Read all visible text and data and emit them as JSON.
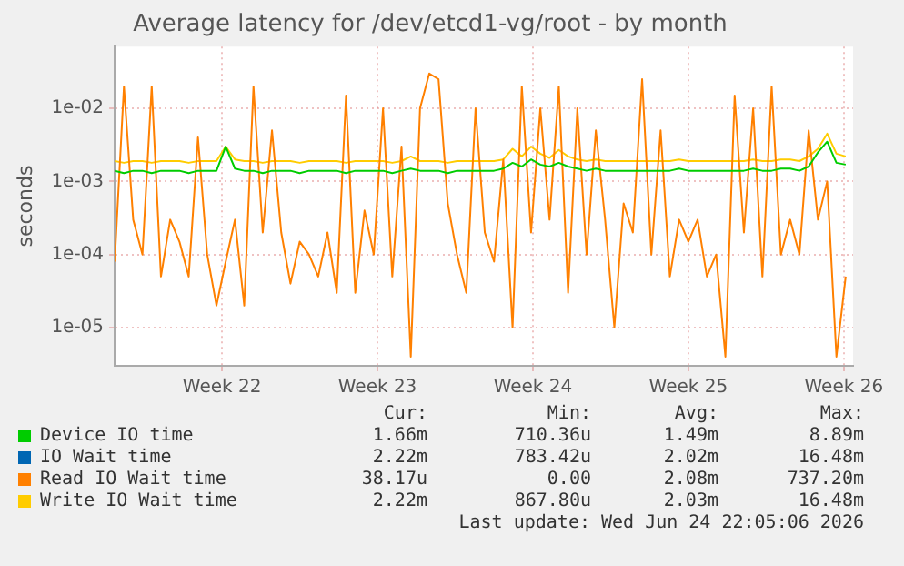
{
  "chart_data": {
    "type": "line",
    "title": "Average latency for /dev/etcd1-vg/root - by month",
    "ylabel": "seconds",
    "log": "y",
    "grid": true,
    "legend": "bottom",
    "xlim": [
      "2026-05-22T16:00",
      "2026-06-24T22:00"
    ],
    "xticks": [
      {
        "value": "2026-05-27T12:00",
        "label": "Week 22"
      },
      {
        "value": "2026-06-03T12:00",
        "label": "Week 23"
      },
      {
        "value": "2026-06-10T12:00",
        "label": "Week 24"
      },
      {
        "value": "2026-06-17T12:00",
        "label": "Week 25"
      },
      {
        "value": "2026-06-24T12:00",
        "label": "Week 26"
      }
    ],
    "ylim": [
      3e-06,
      0.07
    ],
    "yticks": [
      {
        "value": 1e-05,
        "label": "1e-05"
      },
      {
        "value": 0.0001,
        "label": "1e-04"
      },
      {
        "value": 0.001,
        "label": "1e-03"
      },
      {
        "value": 0.01,
        "label": "1e-02"
      }
    ],
    "x": [
      "2026-05-22T16:00",
      "2026-05-23T02:00",
      "2026-05-23T12:00",
      "2026-05-23T22:00",
      "2026-05-24T08:00",
      "2026-05-24T18:00",
      "2026-05-25T04:00",
      "2026-05-25T14:00",
      "2026-05-26T00:00",
      "2026-05-26T10:00",
      "2026-05-26T20:00",
      "2026-05-27T06:00",
      "2026-05-27T16:00",
      "2026-05-28T02:00",
      "2026-05-28T12:00",
      "2026-05-28T22:00",
      "2026-05-29T08:00",
      "2026-05-29T18:00",
      "2026-05-30T04:00",
      "2026-05-30T14:00",
      "2026-05-31T00:00",
      "2026-05-31T10:00",
      "2026-05-31T20:00",
      "2026-06-01T06:00",
      "2026-06-01T16:00",
      "2026-06-02T02:00",
      "2026-06-02T12:00",
      "2026-06-02T22:00",
      "2026-06-03T08:00",
      "2026-06-03T18:00",
      "2026-06-04T04:00",
      "2026-06-04T14:00",
      "2026-06-05T00:00",
      "2026-06-05T10:00",
      "2026-06-05T20:00",
      "2026-06-06T06:00",
      "2026-06-06T16:00",
      "2026-06-07T02:00",
      "2026-06-07T12:00",
      "2026-06-07T22:00",
      "2026-06-08T08:00",
      "2026-06-08T18:00",
      "2026-06-09T04:00",
      "2026-06-09T14:00",
      "2026-06-10T00:00",
      "2026-06-10T10:00",
      "2026-06-10T20:00",
      "2026-06-11T06:00",
      "2026-06-11T16:00",
      "2026-06-12T02:00",
      "2026-06-12T12:00",
      "2026-06-12T22:00",
      "2026-06-13T08:00",
      "2026-06-13T18:00",
      "2026-06-14T04:00",
      "2026-06-14T14:00",
      "2026-06-15T00:00",
      "2026-06-15T10:00",
      "2026-06-15T20:00",
      "2026-06-16T06:00",
      "2026-06-16T16:00",
      "2026-06-17T02:00",
      "2026-06-17T12:00",
      "2026-06-17T22:00",
      "2026-06-18T08:00",
      "2026-06-18T18:00",
      "2026-06-19T04:00",
      "2026-06-19T14:00",
      "2026-06-20T00:00",
      "2026-06-20T10:00",
      "2026-06-20T20:00",
      "2026-06-21T06:00",
      "2026-06-21T16:00",
      "2026-06-22T02:00",
      "2026-06-22T12:00",
      "2026-06-22T22:00",
      "2026-06-23T08:00",
      "2026-06-23T18:00",
      "2026-06-24T04:00",
      "2026-06-24T14:00"
    ],
    "series": [
      {
        "name": "Device IO time",
        "color": "#00cc00",
        "values": [
          0.0014,
          0.0013,
          0.0014,
          0.0014,
          0.0013,
          0.0014,
          0.0014,
          0.0014,
          0.0013,
          0.0014,
          0.0014,
          0.0014,
          0.003,
          0.0015,
          0.0014,
          0.0014,
          0.0013,
          0.0014,
          0.0014,
          0.0014,
          0.0013,
          0.0014,
          0.0014,
          0.0014,
          0.0014,
          0.0013,
          0.0014,
          0.0014,
          0.0014,
          0.0014,
          0.0013,
          0.0014,
          0.0015,
          0.0014,
          0.0014,
          0.0014,
          0.0013,
          0.0014,
          0.0014,
          0.0014,
          0.0014,
          0.0014,
          0.0015,
          0.0018,
          0.0016,
          0.002,
          0.0017,
          0.0016,
          0.0018,
          0.0016,
          0.0015,
          0.0014,
          0.0015,
          0.0014,
          0.0014,
          0.0014,
          0.0014,
          0.0014,
          0.0014,
          0.0014,
          0.0014,
          0.0015,
          0.0014,
          0.0014,
          0.0014,
          0.0014,
          0.0014,
          0.0014,
          0.0014,
          0.0015,
          0.0014,
          0.0014,
          0.0015,
          0.0015,
          0.0014,
          0.0016,
          0.0025,
          0.0035,
          0.0018,
          0.0017
        ]
      },
      {
        "name": "IO Wait time",
        "color": "#0066b3",
        "values": [
          null,
          null,
          null,
          null,
          null,
          null,
          null,
          null,
          null,
          null,
          null,
          null,
          null,
          null,
          null,
          null,
          null,
          null,
          null,
          null,
          null,
          null,
          null,
          null,
          null,
          null,
          null,
          null,
          null,
          null,
          null,
          null,
          null,
          null,
          null,
          null,
          null,
          null,
          null,
          null,
          null,
          null,
          null,
          null,
          null,
          null,
          null,
          null,
          null,
          null,
          null,
          null,
          null,
          null,
          null,
          null,
          null,
          null,
          null,
          null,
          null,
          null,
          null,
          null,
          null,
          null,
          null,
          null,
          null,
          null,
          null,
          null,
          null,
          null,
          null,
          null,
          null,
          null,
          null,
          null
        ]
      },
      {
        "name": "Read IO Wait time",
        "color": "#ff8000",
        "values": [
          8e-05,
          0.02,
          0.0003,
          0.0001,
          0.02,
          5e-05,
          0.0003,
          0.00015,
          5e-05,
          0.004,
          0.0001,
          2e-05,
          8e-05,
          0.0003,
          2e-05,
          0.02,
          0.0002,
          0.005,
          0.0002,
          4e-05,
          0.00015,
          0.0001,
          5e-05,
          0.0002,
          3e-05,
          0.015,
          3e-05,
          0.0004,
          0.0001,
          0.01,
          5e-05,
          0.003,
          4e-06,
          0.01,
          0.03,
          0.025,
          0.0005,
          0.0001,
          3e-05,
          0.01,
          0.0002,
          8e-05,
          0.002,
          1e-05,
          0.02,
          0.0002,
          0.01,
          0.0003,
          0.02,
          3e-05,
          0.01,
          0.0001,
          0.005,
          0.0003,
          1e-05,
          0.0005,
          0.0002,
          0.025,
          0.0001,
          0.005,
          5e-05,
          0.0003,
          0.00015,
          0.0003,
          5e-05,
          0.0001,
          4e-06,
          0.015,
          0.0002,
          0.01,
          5e-05,
          0.02,
          0.0001,
          0.0003,
          0.0001,
          0.005,
          0.0003,
          0.001,
          4e-06,
          5e-05
        ]
      },
      {
        "name": "Write IO Wait time",
        "color": "#ffcc00",
        "values": [
          0.0019,
          0.0018,
          0.0019,
          0.0019,
          0.0018,
          0.0019,
          0.0019,
          0.0019,
          0.0018,
          0.0019,
          0.0019,
          0.0019,
          0.003,
          0.002,
          0.0019,
          0.0019,
          0.0018,
          0.0019,
          0.0019,
          0.0019,
          0.0018,
          0.0019,
          0.0019,
          0.0019,
          0.0019,
          0.0018,
          0.0019,
          0.0019,
          0.0019,
          0.0019,
          0.0018,
          0.0019,
          0.0022,
          0.0019,
          0.0019,
          0.0019,
          0.0018,
          0.0019,
          0.0019,
          0.0019,
          0.0019,
          0.0019,
          0.002,
          0.0028,
          0.0022,
          0.003,
          0.0024,
          0.0021,
          0.0027,
          0.0022,
          0.002,
          0.0019,
          0.002,
          0.0019,
          0.0019,
          0.0019,
          0.0019,
          0.0019,
          0.0019,
          0.0019,
          0.0019,
          0.002,
          0.0019,
          0.0019,
          0.0019,
          0.0019,
          0.0019,
          0.0019,
          0.0019,
          0.002,
          0.0019,
          0.0019,
          0.002,
          0.002,
          0.0019,
          0.0022,
          0.0028,
          0.0045,
          0.0024,
          0.0022
        ]
      }
    ],
    "annotations": [
      "Cur:",
      "Min:",
      "Avg:",
      "Max:",
      "1.66m",
      "710.36u",
      "1.49m",
      "8.89m",
      "2.22m",
      "783.42u",
      "2.02m",
      "16.48m",
      "38.17u",
      "0.00",
      "2.08m",
      "737.20m",
      "2.22m",
      "867.80u",
      "2.03m",
      "16.48m",
      "Last update: Wed Jun 24 22:05:06 2026"
    ]
  }
}
